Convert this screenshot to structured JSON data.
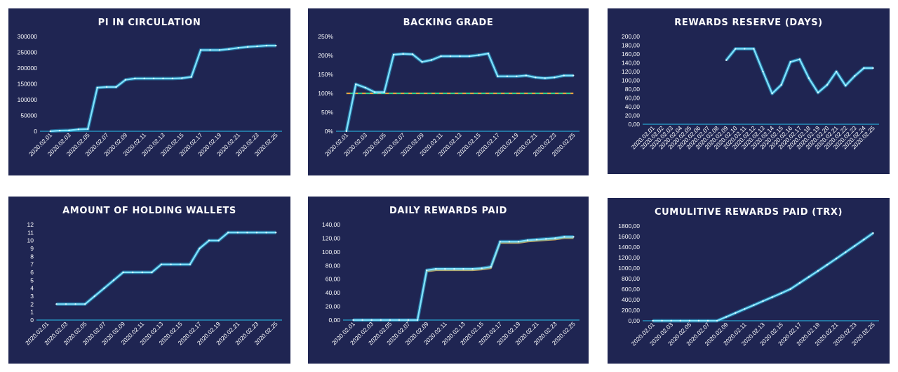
{
  "colors": {
    "panel_bg": "#1f2552",
    "line_main": "#29c4ef",
    "line_glow": "#7fe3ff",
    "line_orange": "#e8a040",
    "line_green": "#2fd08a",
    "axis": "#29c4ef",
    "drop": "#9aa6c8"
  },
  "chart_data": [
    {
      "type": "line",
      "title": "PI IN CIRCULATION",
      "x": [
        "2020.02.01",
        "2020.02.02",
        "2020.02.03",
        "2020.02.04",
        "2020.02.05",
        "2020.02.06",
        "2020.02.07",
        "2020.02.08",
        "2020.02.09",
        "2020.02.10",
        "2020.02.11",
        "2020.02.12",
        "2020.02.13",
        "2020.02.14",
        "2020.02.15",
        "2020.02.16",
        "2020.02.17",
        "2020.02.18",
        "2020.02.19",
        "2020.02.20",
        "2020.02.21",
        "2020.02.22",
        "2020.02.23",
        "2020.02.24",
        "2020.02.25"
      ],
      "x_tick_labels": [
        "2020.02.01",
        "2020.02.03",
        "2020.02.05",
        "2020.02.07",
        "2020.02.09",
        "2020.02.11",
        "2020.02.13",
        "2020.02.15",
        "2020.02.17",
        "2020.02.19",
        "2020.02.21",
        "2020.02.23",
        "2020.02.25"
      ],
      "ylim": [
        0,
        300000
      ],
      "y_tick_labels": [
        "0",
        "50000",
        "100000",
        "150000",
        "200000",
        "250000",
        "300000"
      ],
      "series": [
        {
          "name": "Pi in circulation",
          "values": [
            0,
            2000,
            3000,
            6000,
            7000,
            138000,
            140000,
            140000,
            163000,
            167000,
            167000,
            167000,
            167000,
            167000,
            168000,
            172000,
            257000,
            257000,
            257000,
            260000,
            264000,
            267000,
            269000,
            271000,
            271000
          ]
        }
      ]
    },
    {
      "type": "line",
      "title": "BACKING GRADE",
      "x": [
        "2020.02.01",
        "2020.02.02",
        "2020.02.03",
        "2020.02.04",
        "2020.02.05",
        "2020.02.06",
        "2020.02.07",
        "2020.02.08",
        "2020.02.09",
        "2020.02.10",
        "2020.02.11",
        "2020.02.12",
        "2020.02.13",
        "2020.02.14",
        "2020.02.15",
        "2020.02.16",
        "2020.02.17",
        "2020.02.18",
        "2020.02.19",
        "2020.02.20",
        "2020.02.21",
        "2020.02.22",
        "2020.02.23",
        "2020.02.24",
        "2020.02.25"
      ],
      "x_tick_labels": [
        "2020.02.01",
        "2020.02.03",
        "2020.02.05",
        "2020.02.07",
        "2020.02.09",
        "2020.02.11",
        "2020.02.13",
        "2020.02.15",
        "2020.02.17",
        "2020.02.19",
        "2020.02.21",
        "2020.02.23",
        "2020.02.25"
      ],
      "ylim": [
        0,
        250
      ],
      "y_tick_labels": [
        "0%",
        "50%",
        "100%",
        "150%",
        "200%",
        "250%"
      ],
      "series": [
        {
          "name": "Backing grade",
          "values": [
            0,
            124,
            115,
            103,
            103,
            202,
            204,
            203,
            183,
            188,
            198,
            198,
            198,
            198,
            201,
            205,
            145,
            145,
            145,
            147,
            142,
            140,
            142,
            147,
            147
          ]
        },
        {
          "name": "Threshold 100%",
          "values": [
            100,
            100,
            100,
            100,
            100,
            100,
            100,
            100,
            100,
            100,
            100,
            100,
            100,
            100,
            100,
            100,
            100,
            100,
            100,
            100,
            100,
            100,
            100,
            100,
            100
          ],
          "dashed": true
        }
      ]
    },
    {
      "type": "line",
      "title": "REWARDS RESERVE (DAYS)",
      "x": [
        "2020.02.01",
        "2020.02.02",
        "2020.02.03",
        "2020.02.04",
        "2020.02.05",
        "2020.02.06",
        "2020.02.07",
        "2020.02.08",
        "2020.02.09",
        "2020.02.10",
        "2020.02.11",
        "2020.02.12",
        "2020.02.13",
        "2020.02.14",
        "2020.02.15",
        "2020.02.16",
        "2020.02.17",
        "2020.02.18",
        "2020.02.19",
        "2020.02.20",
        "2020.02.21",
        "2020.02.22",
        "2020.02.23",
        "2020.02.24",
        "2020.02.25"
      ],
      "x_tick_labels": [
        "2020.02.01",
        "2020.02.02",
        "2020.02.03",
        "2020.02.04",
        "2020.02.05",
        "2020.02.06",
        "2020.02.07",
        "2020.02.08",
        "2020.02.09",
        "2020.02.10",
        "2020.02.11",
        "2020.02.12",
        "2020.02.13",
        "2020.02.14",
        "2020.02.15",
        "2020.02.16",
        "2020.02.17",
        "2020.02.18",
        "2020.02.19",
        "2020.02.20",
        "2020.02.21",
        "2020.02.22",
        "2020.02.23",
        "2020.02.24",
        "2020.02.25"
      ],
      "ylim": [
        0,
        200
      ],
      "y_tick_labels": [
        "0,00",
        "20,00",
        "40,00",
        "60,00",
        "80,00",
        "100,00",
        "120,00",
        "140,00",
        "160,00",
        "180,00",
        "200,00"
      ],
      "series": [
        {
          "name": "Rewards reserve",
          "values": [
            null,
            null,
            null,
            null,
            null,
            null,
            null,
            null,
            146,
            172,
            172,
            172,
            120,
            70,
            90,
            142,
            148,
            105,
            72,
            90,
            120,
            88,
            110,
            128,
            128
          ]
        }
      ]
    },
    {
      "type": "line",
      "title": "AMOUNT OF HOLDING WALLETS",
      "x": [
        "2020.02.01",
        "2020.02.02",
        "2020.02.03",
        "2020.02.04",
        "2020.02.05",
        "2020.02.06",
        "2020.02.07",
        "2020.02.08",
        "2020.02.09",
        "2020.02.10",
        "2020.02.11",
        "2020.02.12",
        "2020.02.13",
        "2020.02.14",
        "2020.02.15",
        "2020.02.16",
        "2020.02.17",
        "2020.02.18",
        "2020.02.19",
        "2020.02.20",
        "2020.02.21",
        "2020.02.22",
        "2020.02.23",
        "2020.02.24",
        "2020.02.25"
      ],
      "x_tick_labels": [
        "2020.02.01",
        "2020.02.03",
        "2020.02.05",
        "2020.02.07",
        "2020.02.09",
        "2020.02.11",
        "2020.02.13",
        "2020.02.15",
        "2020.02.17",
        "2020.02.19",
        "2020.02.21",
        "2020.02.23",
        "2020.02.25"
      ],
      "ylim": [
        0,
        12
      ],
      "y_tick_labels": [
        "0",
        "1",
        "2",
        "3",
        "4",
        "5",
        "6",
        "7",
        "8",
        "9",
        "10",
        "11",
        "12"
      ],
      "series": [
        {
          "name": "Holding wallets",
          "values": [
            null,
            2,
            2,
            2,
            2,
            3,
            4,
            5,
            6,
            6,
            6,
            6,
            7,
            7,
            7,
            7,
            9,
            10,
            10,
            11,
            11,
            11,
            11,
            11,
            11
          ]
        }
      ]
    },
    {
      "type": "line",
      "title": "DAILY REWARDS PAID",
      "x": [
        "2020.02.01",
        "2020.02.02",
        "2020.02.03",
        "2020.02.04",
        "2020.02.05",
        "2020.02.06",
        "2020.02.07",
        "2020.02.08",
        "2020.02.09",
        "2020.02.10",
        "2020.02.11",
        "2020.02.12",
        "2020.02.13",
        "2020.02.14",
        "2020.02.15",
        "2020.02.16",
        "2020.02.17",
        "2020.02.18",
        "2020.02.19",
        "2020.02.20",
        "2020.02.21",
        "2020.02.22",
        "2020.02.23",
        "2020.02.24",
        "2020.02.25"
      ],
      "x_tick_labels": [
        "2020.02.01",
        "2020.02.03",
        "2020.02.05",
        "2020.02.07",
        "2020.02.09",
        "2020.02.11",
        "2020.02.13",
        "2020.02.15",
        "2020.02.17",
        "2020.02.19",
        "2020.02.21",
        "2020.02.23",
        "2020.02.25"
      ],
      "ylim": [
        0,
        140
      ],
      "y_tick_labels": [
        "0,00",
        "20,00",
        "40,00",
        "60,00",
        "80,00",
        "100,00",
        "120,00",
        "140,00"
      ],
      "series": [
        {
          "name": "Daily rewards",
          "values": [
            0,
            0,
            0,
            0,
            0,
            0,
            0,
            0,
            73,
            75,
            75,
            75,
            75,
            75,
            76,
            78,
            115,
            115,
            115,
            117,
            118,
            119,
            120,
            122,
            122
          ]
        },
        {
          "name": "Daily rewards (alt)",
          "values": [
            0,
            0,
            0,
            0,
            0,
            0,
            0,
            0,
            71,
            73,
            73,
            73,
            73,
            73,
            74,
            76,
            113,
            113,
            113,
            115,
            116,
            117,
            118,
            120,
            120
          ],
          "color": "orange"
        }
      ]
    },
    {
      "type": "line",
      "title": "CUMULITIVE REWARDS PAID (TRX)",
      "x": [
        "2020.02.01",
        "2020.02.02",
        "2020.02.03",
        "2020.02.04",
        "2020.02.05",
        "2020.02.06",
        "2020.02.07",
        "2020.02.08",
        "2020.02.09",
        "2020.02.10",
        "2020.02.11",
        "2020.02.12",
        "2020.02.13",
        "2020.02.14",
        "2020.02.15",
        "2020.02.16",
        "2020.02.17",
        "2020.02.18",
        "2020.02.19",
        "2020.02.20",
        "2020.02.21",
        "2020.02.22",
        "2020.02.23",
        "2020.02.24",
        "2020.02.25"
      ],
      "x_tick_labels": [
        "2020.02.01",
        "2020.02.03",
        "2020.02.05",
        "2020.02.07",
        "2020.02.09",
        "2020.02.11",
        "2020.02.13",
        "2020.02.15",
        "2020.02.17",
        "2020.02.19",
        "2020.02.21",
        "2020.02.23",
        "2020.02.25"
      ],
      "ylim": [
        0,
        1800
      ],
      "y_tick_labels": [
        "0,00",
        "200,00",
        "400,00",
        "600,00",
        "800,00",
        "1000,00",
        "1200,00",
        "1400,00",
        "1600,00",
        "1800,00"
      ],
      "series": [
        {
          "name": "Cumulative rewards",
          "values": [
            0,
            0,
            0,
            0,
            0,
            0,
            0,
            0,
            73,
            148,
            223,
            298,
            373,
            448,
            524,
            602,
            717,
            832,
            947,
            1064,
            1182,
            1301,
            1421,
            1543,
            1665
          ]
        }
      ]
    }
  ]
}
